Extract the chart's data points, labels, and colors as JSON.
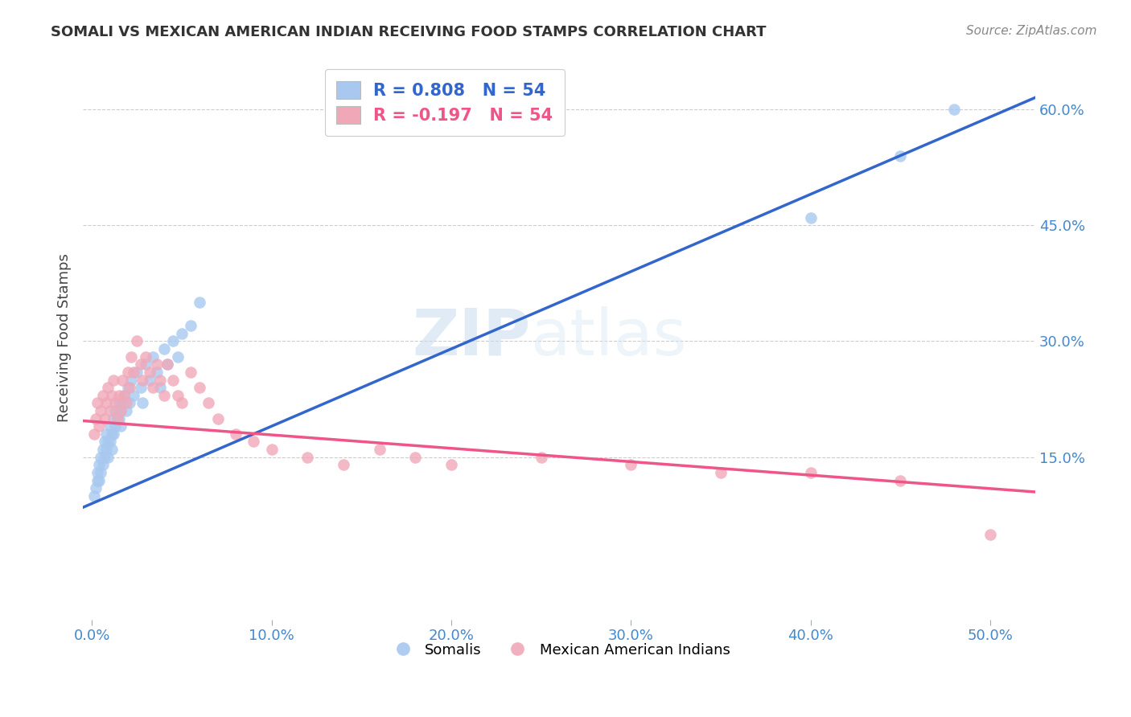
{
  "title": "SOMALI VS MEXICAN AMERICAN INDIAN RECEIVING FOOD STAMPS CORRELATION CHART",
  "source": "Source: ZipAtlas.com",
  "ylabel": "Receiving Food Stamps",
  "xlabel_vals": [
    0.0,
    0.1,
    0.2,
    0.3,
    0.4,
    0.5
  ],
  "ylabel_vals": [
    0.15,
    0.3,
    0.45,
    0.6
  ],
  "xlim": [
    -0.005,
    0.525
  ],
  "ylim": [
    -0.06,
    0.67
  ],
  "somali_color": "#A8C8F0",
  "mexican_color": "#F0A8B8",
  "somali_line_color": "#3366CC",
  "mexican_line_color": "#EE5588",
  "R_somali": 0.808,
  "N_somali": 54,
  "R_mexican": -0.197,
  "N_mexican": 54,
  "legend_labels": [
    "Somalis",
    "Mexican American Indians"
  ],
  "watermark_zip": "ZIP",
  "watermark_atlas": "atlas",
  "background_color": "#FFFFFF",
  "somali_x": [
    0.001,
    0.002,
    0.003,
    0.003,
    0.004,
    0.004,
    0.005,
    0.005,
    0.006,
    0.006,
    0.007,
    0.007,
    0.008,
    0.008,
    0.009,
    0.009,
    0.01,
    0.01,
    0.011,
    0.011,
    0.012,
    0.012,
    0.013,
    0.013,
    0.014,
    0.015,
    0.015,
    0.016,
    0.016,
    0.017,
    0.018,
    0.019,
    0.02,
    0.021,
    0.022,
    0.023,
    0.025,
    0.027,
    0.028,
    0.03,
    0.032,
    0.034,
    0.036,
    0.038,
    0.04,
    0.042,
    0.045,
    0.048,
    0.05,
    0.055,
    0.06,
    0.4,
    0.45,
    0.48
  ],
  "somali_y": [
    0.1,
    0.11,
    0.12,
    0.13,
    0.14,
    0.12,
    0.15,
    0.13,
    0.16,
    0.14,
    0.17,
    0.15,
    0.18,
    0.16,
    0.17,
    0.15,
    0.19,
    0.17,
    0.18,
    0.16,
    0.2,
    0.18,
    0.21,
    0.19,
    0.2,
    0.22,
    0.2,
    0.21,
    0.19,
    0.22,
    0.23,
    0.21,
    0.24,
    0.22,
    0.25,
    0.23,
    0.26,
    0.24,
    0.22,
    0.27,
    0.25,
    0.28,
    0.26,
    0.24,
    0.29,
    0.27,
    0.3,
    0.28,
    0.31,
    0.32,
    0.35,
    0.46,
    0.54,
    0.6
  ],
  "mexican_x": [
    0.001,
    0.002,
    0.003,
    0.004,
    0.005,
    0.006,
    0.007,
    0.008,
    0.009,
    0.01,
    0.011,
    0.012,
    0.013,
    0.014,
    0.015,
    0.016,
    0.017,
    0.018,
    0.019,
    0.02,
    0.021,
    0.022,
    0.023,
    0.025,
    0.027,
    0.028,
    0.03,
    0.032,
    0.034,
    0.036,
    0.038,
    0.04,
    0.042,
    0.045,
    0.048,
    0.05,
    0.055,
    0.06,
    0.065,
    0.07,
    0.08,
    0.09,
    0.1,
    0.12,
    0.14,
    0.16,
    0.18,
    0.2,
    0.25,
    0.3,
    0.35,
    0.4,
    0.45,
    0.5
  ],
  "mexican_y": [
    0.18,
    0.2,
    0.22,
    0.19,
    0.21,
    0.23,
    0.2,
    0.22,
    0.24,
    0.21,
    0.23,
    0.25,
    0.22,
    0.2,
    0.23,
    0.21,
    0.25,
    0.23,
    0.22,
    0.26,
    0.24,
    0.28,
    0.26,
    0.3,
    0.27,
    0.25,
    0.28,
    0.26,
    0.24,
    0.27,
    0.25,
    0.23,
    0.27,
    0.25,
    0.23,
    0.22,
    0.26,
    0.24,
    0.22,
    0.2,
    0.18,
    0.17,
    0.16,
    0.15,
    0.14,
    0.16,
    0.15,
    0.14,
    0.15,
    0.14,
    0.13,
    0.13,
    0.12,
    0.05
  ]
}
